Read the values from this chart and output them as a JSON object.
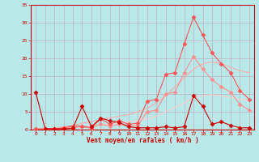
{
  "xlabel": "Vent moyen/en rafales ( km/h )",
  "xlim": [
    -0.5,
    23.5
  ],
  "ylim": [
    0,
    35
  ],
  "yticks": [
    0,
    5,
    10,
    15,
    20,
    25,
    30,
    35
  ],
  "xticks": [
    0,
    1,
    2,
    3,
    4,
    5,
    6,
    7,
    8,
    9,
    10,
    11,
    12,
    13,
    14,
    15,
    16,
    17,
    18,
    19,
    20,
    21,
    22,
    23
  ],
  "background_color": "#b8e8e8",
  "grid_color": "#c0b0c0",
  "series": [
    {
      "x": [
        0,
        1,
        2,
        3,
        4,
        5,
        6,
        7,
        8,
        9,
        10,
        11,
        12,
        13,
        14,
        15,
        16,
        17,
        18,
        19,
        20,
        21,
        22,
        23
      ],
      "y": [
        10.5,
        0.3,
        0.2,
        0.2,
        0.4,
        6.5,
        0.8,
        3.2,
        2.5,
        2.0,
        0.8,
        0.5,
        0.5,
        0.5,
        0.8,
        0.5,
        0.8,
        9.5,
        6.5,
        1.5,
        2.2,
        1.2,
        0.5,
        0.5
      ],
      "color": "#cc0000",
      "marker": "D",
      "markersize": 2.5,
      "linewidth": 0.8,
      "alpha": 1.0,
      "zorder": 5
    },
    {
      "x": [
        0,
        1,
        2,
        3,
        4,
        5,
        6,
        7,
        8,
        9,
        10,
        11,
        12,
        13,
        14,
        15,
        16,
        17,
        18,
        19,
        20,
        21,
        22,
        23
      ],
      "y": [
        0.2,
        0.2,
        0.2,
        0.5,
        1.0,
        1.0,
        0.5,
        3.0,
        1.5,
        2.5,
        1.5,
        1.8,
        8.0,
        8.5,
        15.5,
        16.0,
        24.0,
        31.5,
        26.5,
        21.5,
        18.5,
        16.0,
        11.0,
        8.5
      ],
      "color": "#ff5555",
      "marker": "D",
      "markersize": 2.5,
      "linewidth": 0.8,
      "alpha": 1.0,
      "zorder": 4
    },
    {
      "x": [
        0,
        1,
        2,
        3,
        4,
        5,
        6,
        7,
        8,
        9,
        10,
        11,
        12,
        13,
        14,
        15,
        16,
        17,
        18,
        19,
        20,
        21,
        22,
        23
      ],
      "y": [
        0.1,
        0.1,
        0.1,
        0.3,
        0.6,
        0.8,
        0.5,
        1.5,
        1.0,
        1.5,
        1.0,
        1.2,
        5.0,
        5.5,
        10.0,
        10.5,
        16.0,
        20.5,
        17.0,
        14.0,
        12.0,
        10.5,
        7.0,
        5.5
      ],
      "color": "#ff9090",
      "marker": "D",
      "markersize": 2.5,
      "linewidth": 0.8,
      "alpha": 1.0,
      "zorder": 3
    },
    {
      "x": [
        0,
        1,
        2,
        3,
        4,
        5,
        6,
        7,
        8,
        9,
        10,
        11,
        12,
        13,
        14,
        15,
        16,
        17,
        18,
        19,
        20,
        21,
        22,
        23
      ],
      "y": [
        0.1,
        0.2,
        0.4,
        0.8,
        1.2,
        1.8,
        2.2,
        2.8,
        3.2,
        3.8,
        4.2,
        5.0,
        6.0,
        7.5,
        9.5,
        12.0,
        14.5,
        17.0,
        18.5,
        19.0,
        18.5,
        17.5,
        16.5,
        16.0
      ],
      "color": "#ffaaaa",
      "marker": null,
      "markersize": 0,
      "linewidth": 0.8,
      "alpha": 1.0,
      "zorder": 2
    },
    {
      "x": [
        0,
        1,
        2,
        3,
        4,
        5,
        6,
        7,
        8,
        9,
        10,
        11,
        12,
        13,
        14,
        15,
        16,
        17,
        18,
        19,
        20,
        21,
        22,
        23
      ],
      "y": [
        0.1,
        0.15,
        0.2,
        0.4,
        0.6,
        0.8,
        1.0,
        1.3,
        1.6,
        1.9,
        2.2,
        2.5,
        3.0,
        3.8,
        5.0,
        6.2,
        7.5,
        9.0,
        9.5,
        9.8,
        9.5,
        9.0,
        8.5,
        8.0
      ],
      "color": "#ffcccc",
      "marker": null,
      "markersize": 0,
      "linewidth": 0.8,
      "alpha": 1.0,
      "zorder": 1
    }
  ]
}
